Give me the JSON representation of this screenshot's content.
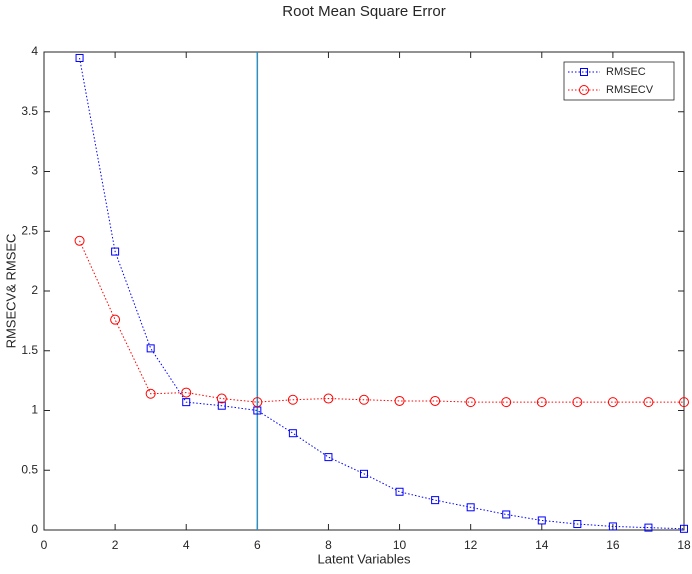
{
  "chart_data": {
    "type": "line",
    "title": "Root Mean Square Error",
    "x_label": "Latent Variables",
    "y_label": "RMSECV& RMSEC",
    "x": [
      1,
      2,
      3,
      4,
      5,
      6,
      7,
      8,
      9,
      10,
      11,
      12,
      13,
      14,
      15,
      16,
      17,
      18
    ],
    "series": [
      {
        "name": "RMSEC",
        "color": "#0000ff",
        "marker": "square",
        "values": [
          3.95,
          2.33,
          1.52,
          1.07,
          1.04,
          1.0,
          0.81,
          0.61,
          0.47,
          0.32,
          0.25,
          0.19,
          0.13,
          0.08,
          0.05,
          0.03,
          0.02,
          0.01
        ]
      },
      {
        "name": "RMSECV",
        "color": "#ff0000",
        "marker": "circle",
        "values": [
          2.42,
          1.76,
          1.14,
          1.15,
          1.1,
          1.07,
          1.09,
          1.1,
          1.09,
          1.08,
          1.08,
          1.07,
          1.07,
          1.07,
          1.07,
          1.07,
          1.07,
          1.07
        ]
      }
    ],
    "vline_x": 6,
    "vline_color": "#2e8fc0",
    "xlim": [
      0,
      18
    ],
    "xticks": [
      0,
      2,
      4,
      6,
      8,
      10,
      12,
      14,
      16,
      18
    ],
    "ylim": [
      0,
      4
    ],
    "yticks": [
      0,
      0.5,
      1,
      1.5,
      2,
      2.5,
      3,
      3.5,
      4
    ],
    "legend": "upper right"
  }
}
